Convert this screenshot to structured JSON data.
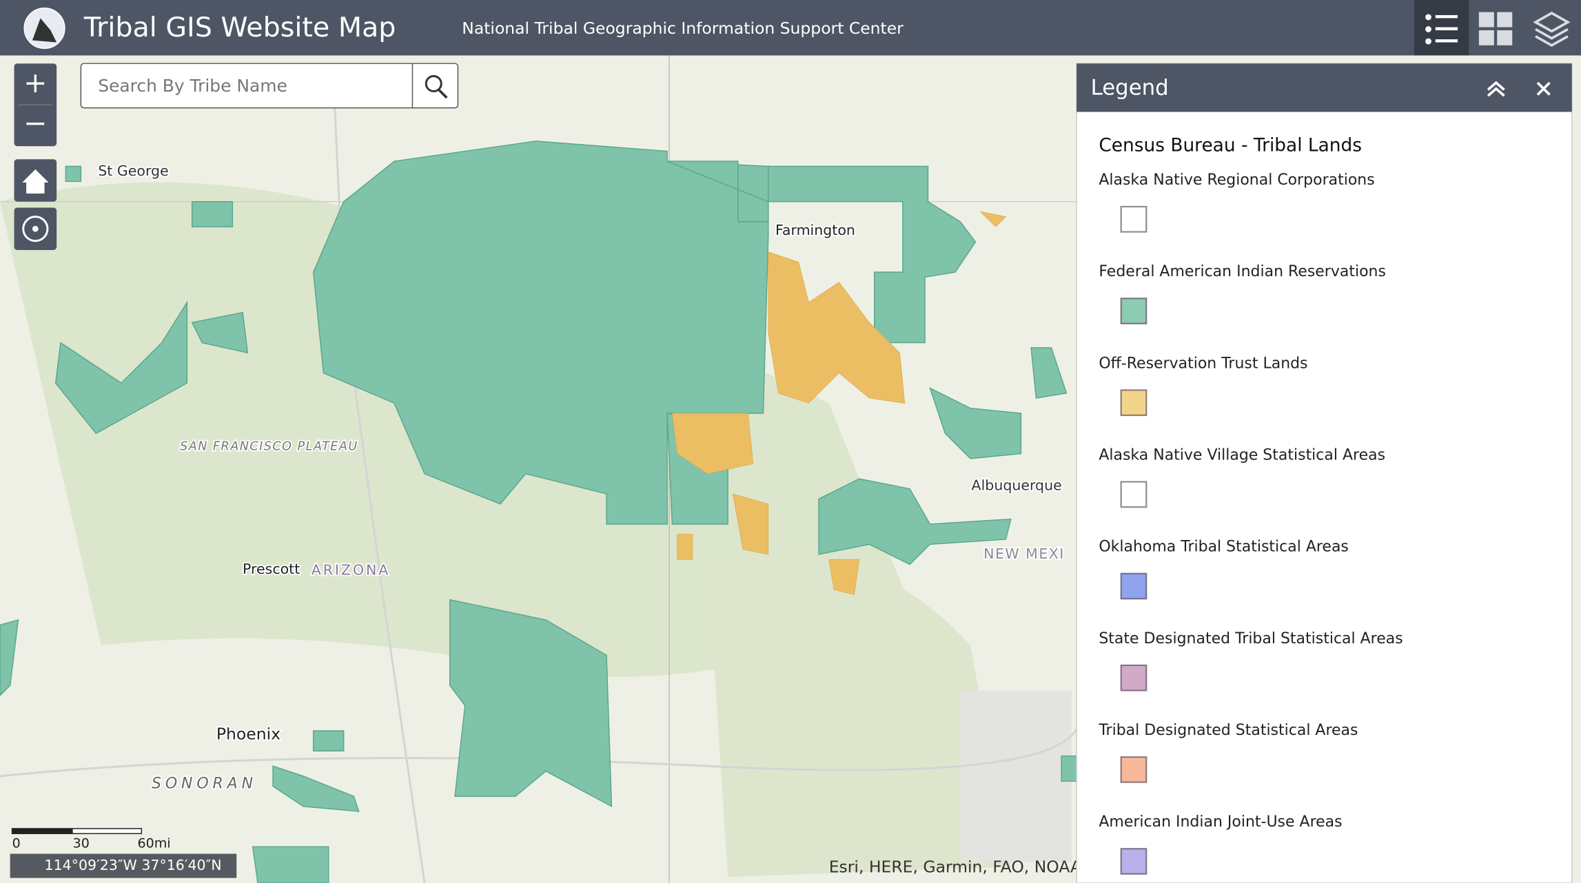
{
  "header": {
    "title": "Tribal GIS Website Map",
    "subtitle": "National Tribal Geographic Information Support Center"
  },
  "search": {
    "placeholder": "Search By Tribe Name"
  },
  "legend": {
    "title": "Legend",
    "group": "Census Bureau - Tribal Lands",
    "items": [
      {
        "name": "Alaska Native Regional Corporations",
        "color": "#ffffff"
      },
      {
        "name": "Federal American Indian Reservations",
        "color": "#8ecbb3"
      },
      {
        "name": "Off-Reservation Trust Lands",
        "color": "#f2d58b"
      },
      {
        "name": "Alaska Native Village Statistical Areas",
        "color": "#ffffff"
      },
      {
        "name": "Oklahoma Tribal Statistical Areas",
        "color": "#8fa3ef"
      },
      {
        "name": "State Designated Tribal Statistical Areas",
        "color": "#d3a9c8"
      },
      {
        "name": "Tribal Designated Statistical Areas",
        "color": "#f7b99a"
      },
      {
        "name": "American Indian Joint-Use Areas",
        "color": "#b7b2ea"
      }
    ]
  },
  "map": {
    "labels": [
      "St George",
      "Farmington",
      "Prescott",
      "ARIZONA",
      "Phoenix",
      "Albuquerque",
      "SAN FRANCISCO PLATEAU",
      "SONORAN",
      "NEW MEXI"
    ],
    "scale": [
      "0",
      "30",
      "60mi"
    ],
    "coordinates": "114°09′23″W 37°16′40″N",
    "attribution": "Esri, HERE, Garmin, FAO, NOAA"
  }
}
